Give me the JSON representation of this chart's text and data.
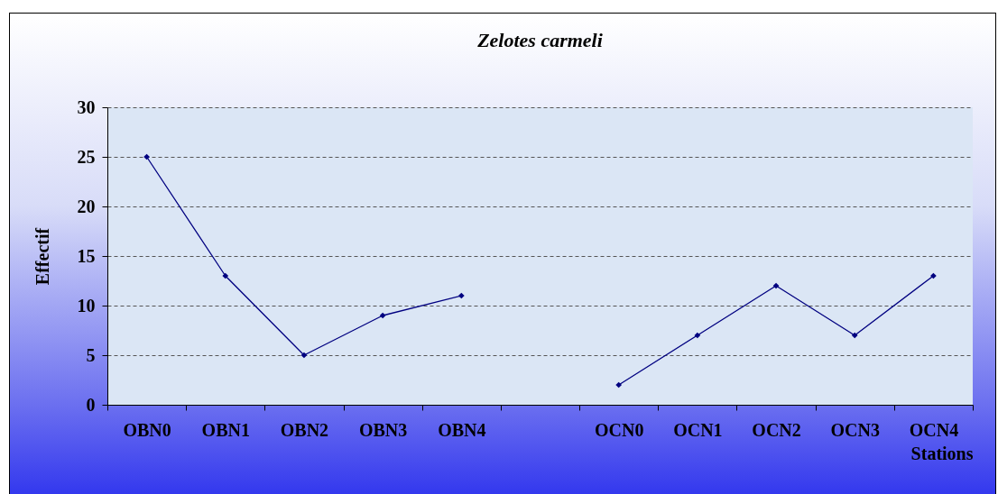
{
  "chart_data": {
    "type": "line",
    "title": "Zelotes carmeli",
    "xlabel": "Stations",
    "ylabel": "Effectif",
    "categories": [
      "OBN0",
      "OBN1",
      "OBN2",
      "OBN3",
      "OBN4",
      null,
      "OCN0",
      "OCN1",
      "OCN2",
      "OCN3",
      "OCN4"
    ],
    "series": [
      {
        "color": "#000080",
        "values": [
          25,
          13,
          5,
          9,
          11,
          null,
          2,
          7,
          12,
          7,
          13
        ]
      }
    ],
    "ylim": [
      0,
      30
    ],
    "yticks": [
      0,
      5,
      10,
      15,
      20,
      25,
      30
    ],
    "grid": "y",
    "marker": "diamond",
    "line_style": "solid"
  }
}
